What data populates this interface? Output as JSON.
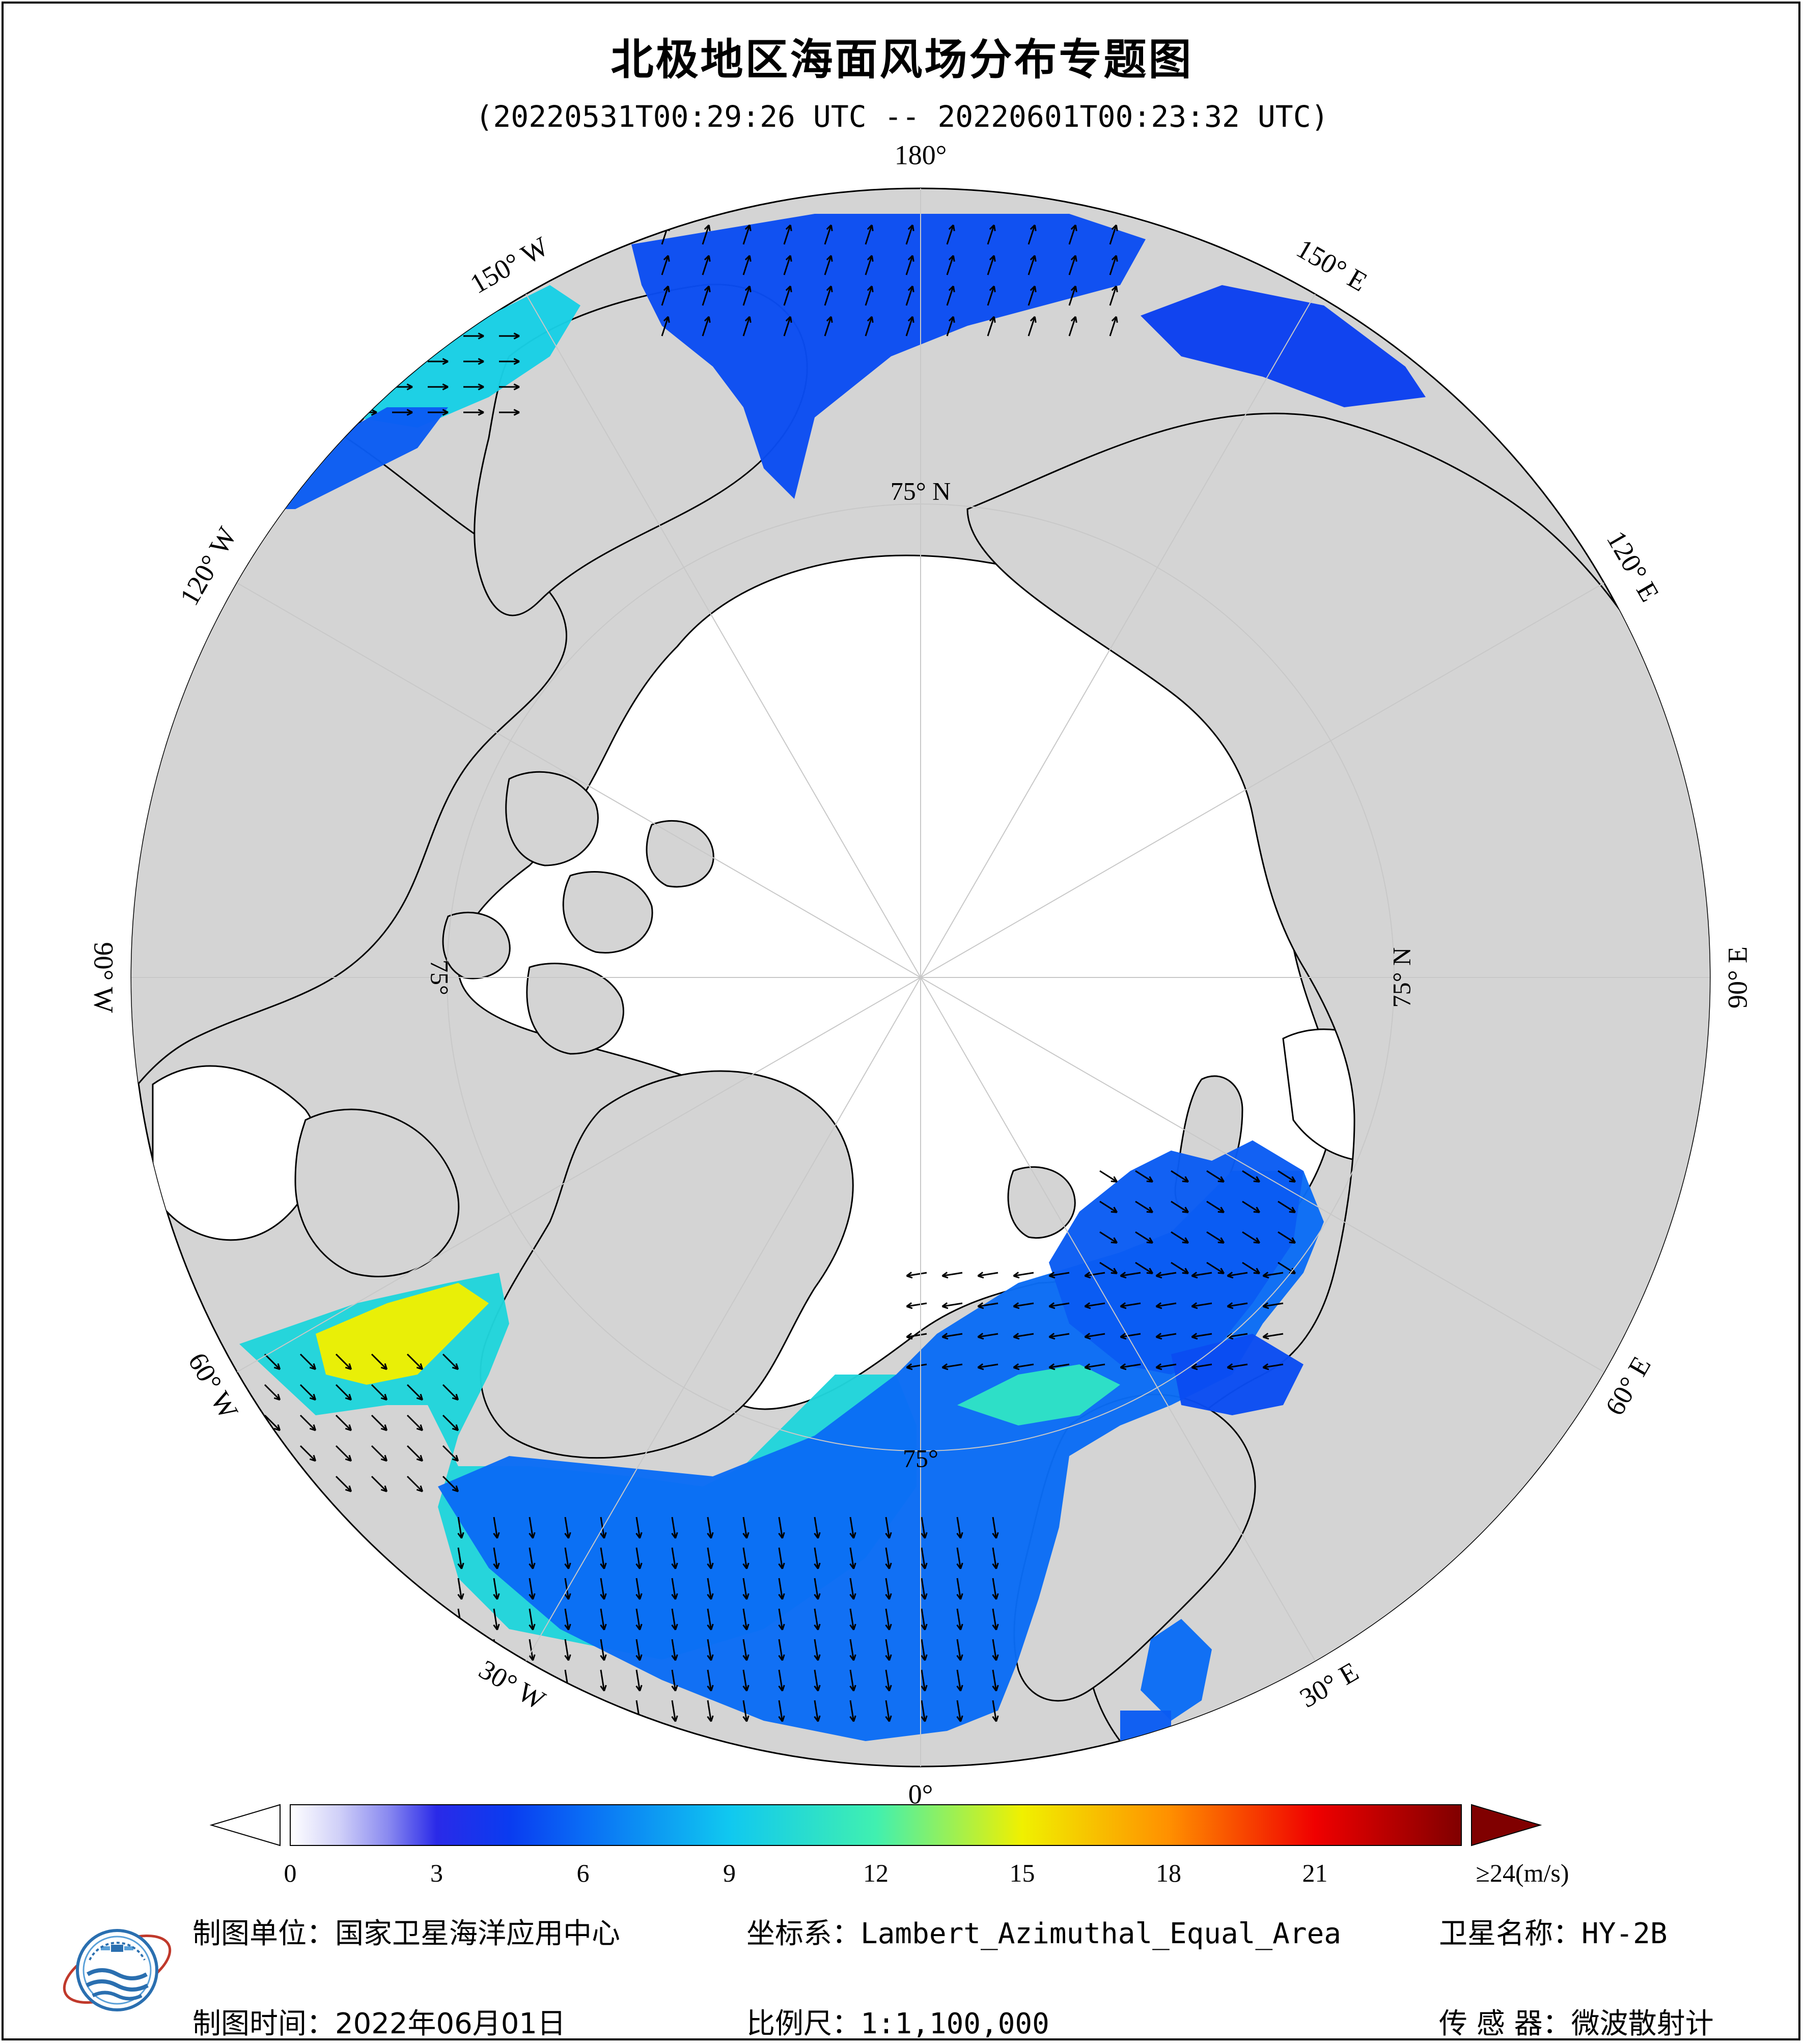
{
  "title": "北极地区海面风场分布专题图",
  "subtitle": "(20220531T00:29:26 UTC -- 20220601T00:23:32 UTC)",
  "map": {
    "projection": "Lambert_Azimuthal_Equal_Area",
    "center": "North Pole",
    "longitude_labels": [
      {
        "lon": 180,
        "text": "180°"
      },
      {
        "lon": 150,
        "text": "150° E"
      },
      {
        "lon": 120,
        "text": "120° E"
      },
      {
        "lon": 90,
        "text": "90° E"
      },
      {
        "lon": 60,
        "text": "60° E"
      },
      {
        "lon": 30,
        "text": "30° E"
      },
      {
        "lon": 0,
        "text": "0°"
      },
      {
        "lon": -30,
        "text": "30° W"
      },
      {
        "lon": -60,
        "text": "60° W"
      },
      {
        "lon": -90,
        "text": "90° W"
      },
      {
        "lon": -120,
        "text": "120° W"
      },
      {
        "lon": -150,
        "text": "150° W"
      }
    ],
    "latitude_labels": [
      {
        "lat": 75,
        "lon": 180,
        "text": "75° N"
      },
      {
        "lat": 75,
        "lon": 90,
        "text": "75° N"
      },
      {
        "lat": 75,
        "lon": 0,
        "text": "75°"
      },
      {
        "lat": 75,
        "lon": -90,
        "text": "75°"
      }
    ],
    "colors": {
      "land": "#d4d4d4",
      "sea_ice": "#ffffff",
      "coastline": "#000000",
      "graticule": "#c8c8c8",
      "wind_arrow": "#000000"
    }
  },
  "colorbar": {
    "unit": "(m/s)",
    "min": 0,
    "max": 24,
    "tick_labels": [
      {
        "value": 0,
        "text": "0"
      },
      {
        "value": 3,
        "text": "3"
      },
      {
        "value": 6,
        "text": "6"
      },
      {
        "value": 9,
        "text": "9"
      },
      {
        "value": 12,
        "text": "12"
      },
      {
        "value": 15,
        "text": "15"
      },
      {
        "value": 18,
        "text": "18"
      },
      {
        "value": 21,
        "text": "21"
      },
      {
        "value": 24,
        "text": "≥24(m/s)"
      }
    ],
    "stops": [
      {
        "value": 0,
        "color": "#ffffff"
      },
      {
        "value": 1,
        "color": "#d0d0f8"
      },
      {
        "value": 2,
        "color": "#8a8af0"
      },
      {
        "value": 3,
        "color": "#2a2ae8"
      },
      {
        "value": 4.5,
        "color": "#0a3cf0"
      },
      {
        "value": 6,
        "color": "#0a6cf5"
      },
      {
        "value": 9,
        "color": "#10c8f0"
      },
      {
        "value": 12,
        "color": "#40f0b0"
      },
      {
        "value": 15,
        "color": "#f0f000"
      },
      {
        "value": 18,
        "color": "#ff9000"
      },
      {
        "value": 21,
        "color": "#f00000"
      },
      {
        "value": 24,
        "color": "#800000"
      }
    ],
    "under_color": "#ffffff",
    "over_color": "#800000"
  },
  "footer": {
    "unit_label": "制图单位：",
    "unit_value": "国家卫星海洋应用中心",
    "crs_label": "坐标系：",
    "crs_value": "Lambert_Azimuthal_Equal_Area",
    "satellite_label": "卫星名称：",
    "satellite_value": "HY-2B",
    "date_label": "制图时间：",
    "date_value": "2022年06月01日",
    "scale_label": "比例尺：",
    "scale_value": "1:1,100,000",
    "sensor_label": "传 感 器：",
    "sensor_value": "微波散射计"
  },
  "logo": {
    "icon": "nsoas-logo-icon"
  }
}
